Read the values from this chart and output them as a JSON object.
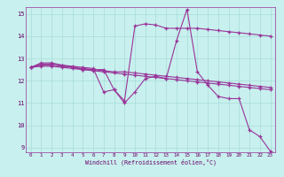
{
  "xlabel": "Windchill (Refroidissement éolien,°C)",
  "bg_color": "#c8f0ee",
  "grid_color": "#a8dcd8",
  "line_color": "#993399",
  "xlim": [
    -0.5,
    23.5
  ],
  "ylim": [
    8.8,
    15.3
  ],
  "yticks": [
    9,
    10,
    11,
    12,
    13,
    14,
    15
  ],
  "xticks": [
    0,
    1,
    2,
    3,
    4,
    5,
    6,
    7,
    8,
    9,
    10,
    11,
    12,
    13,
    14,
    15,
    16,
    17,
    18,
    19,
    20,
    21,
    22,
    23
  ],
  "series": [
    [
      12.6,
      12.8,
      12.8,
      12.7,
      12.6,
      12.5,
      12.5,
      12.5,
      11.6,
      11.0,
      11.5,
      12.1,
      12.2,
      12.1,
      13.8,
      15.2,
      12.4,
      11.8,
      11.3,
      11.2,
      11.2,
      9.8,
      9.5,
      8.85
    ],
    [
      12.6,
      12.65,
      12.65,
      12.6,
      12.55,
      12.5,
      12.45,
      12.4,
      12.35,
      12.3,
      12.25,
      12.2,
      12.15,
      12.1,
      12.05,
      12.0,
      11.95,
      11.9,
      11.85,
      11.8,
      11.75,
      11.7,
      11.65,
      11.6
    ],
    [
      12.6,
      12.7,
      12.7,
      12.65,
      12.6,
      12.55,
      12.5,
      12.45,
      12.4,
      12.4,
      12.35,
      12.3,
      12.25,
      12.2,
      12.15,
      12.1,
      12.05,
      12.0,
      11.95,
      11.9,
      11.85,
      11.8,
      11.75,
      11.7
    ],
    [
      12.6,
      12.75,
      12.75,
      12.7,
      12.65,
      12.6,
      12.55,
      11.5,
      11.6,
      11.1,
      14.45,
      14.55,
      14.5,
      14.35,
      14.35,
      14.35,
      14.35,
      14.3,
      14.25,
      14.2,
      14.15,
      14.1,
      14.05,
      14.0
    ]
  ]
}
